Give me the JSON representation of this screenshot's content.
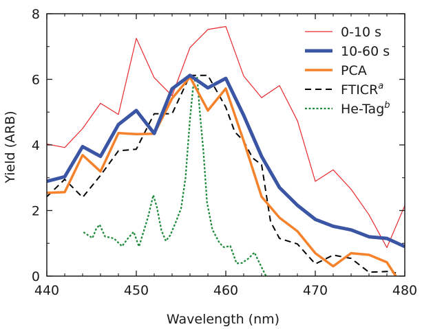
{
  "chart_data": {
    "type": "line",
    "title": "",
    "xlabel": "Wavelength (nm)",
    "ylabel": "Yield (ARB)",
    "xlim": [
      440,
      480
    ],
    "ylim": [
      0,
      8
    ],
    "xticks": [
      440,
      450,
      460,
      470,
      480
    ],
    "yticks": [
      0,
      2,
      4,
      6,
      8
    ],
    "grid": false,
    "legend_position": "top-right",
    "series": [
      {
        "name": "0-10 s",
        "sup": "",
        "color": "#e8282b",
        "style": "solid-thin",
        "x": [
          440,
          442,
          444,
          446,
          448,
          450,
          452,
          454,
          456,
          458,
          460,
          462,
          464,
          466,
          468,
          470,
          472,
          474,
          476,
          478,
          480
        ],
        "y": [
          4.03,
          3.92,
          4.5,
          5.27,
          4.93,
          7.25,
          6.05,
          5.5,
          6.97,
          7.52,
          7.61,
          6.1,
          5.44,
          5.81,
          4.74,
          2.89,
          3.24,
          2.65,
          1.87,
          0.87,
          2.15
        ]
      },
      {
        "name": "10-60 s",
        "sup": "",
        "color": "#3a55a4",
        "style": "solid-thick",
        "x": [
          440,
          442,
          444,
          446,
          448,
          450,
          452,
          454,
          456,
          458,
          460,
          462,
          464,
          466,
          468,
          470,
          472,
          474,
          476,
          478,
          480
        ],
        "y": [
          2.89,
          3.03,
          3.95,
          3.65,
          4.62,
          5.05,
          4.35,
          5.71,
          6.12,
          5.74,
          6.03,
          4.9,
          3.65,
          2.7,
          2.16,
          1.73,
          1.52,
          1.41,
          1.2,
          1.15,
          0.9
        ]
      },
      {
        "name": "PCA",
        "sup": "",
        "color": "#f5822a",
        "style": "solid-medium",
        "x": [
          440,
          442,
          444,
          446,
          448,
          450,
          452,
          454,
          456,
          458,
          460,
          462,
          464,
          466,
          468,
          470,
          472,
          474,
          476,
          478,
          479
        ],
        "y": [
          2.54,
          2.56,
          3.69,
          3.19,
          4.36,
          4.33,
          4.34,
          5.42,
          6.07,
          5.05,
          5.72,
          4.12,
          2.42,
          1.78,
          1.37,
          0.7,
          0.3,
          0.7,
          0.65,
          0.42,
          0.0
        ]
      },
      {
        "name": "FTICR",
        "sup": "a",
        "color": "#000000",
        "style": "dashed",
        "x": [
          440,
          442,
          444,
          446,
          448,
          450,
          452,
          454,
          456,
          458,
          460,
          461,
          462,
          463,
          464,
          465,
          466,
          468,
          470,
          472,
          474,
          476,
          478,
          479
        ],
        "y": [
          2.42,
          2.95,
          2.4,
          3.07,
          3.82,
          3.87,
          4.95,
          4.95,
          6.12,
          6.12,
          5.15,
          4.4,
          4.12,
          3.6,
          3.4,
          1.66,
          1.15,
          0.98,
          0.37,
          0.64,
          0.54,
          0.12,
          0.14,
          0.1
        ]
      },
      {
        "name": "He-Tag",
        "sup": "b",
        "color": "#1e8a3c",
        "style": "dotted",
        "x": [
          444.1,
          444.6,
          445.1,
          445.5,
          445.9,
          446.5,
          447.5,
          448.4,
          449.1,
          449.7,
          450.3,
          451.3,
          451.9,
          452.3,
          452.8,
          453.3,
          453.8,
          454.4,
          455.0,
          455.5,
          456.0,
          456.4,
          456.8,
          457.1,
          457.5,
          457.9,
          458.5,
          459.3,
          459.8,
          460.5,
          461.2,
          461.8,
          462.5,
          463.2,
          463.8,
          464.5
        ],
        "y": [
          1.34,
          1.25,
          1.16,
          1.43,
          1.57,
          1.21,
          1.15,
          0.91,
          1.16,
          1.35,
          0.9,
          1.79,
          2.47,
          2.1,
          1.4,
          1.07,
          1.25,
          1.64,
          2.06,
          3.0,
          4.8,
          5.9,
          6.05,
          5.0,
          3.8,
          2.25,
          1.42,
          1.01,
          0.88,
          0.92,
          0.39,
          0.4,
          0.53,
          0.72,
          0.38,
          0.0
        ]
      }
    ]
  }
}
